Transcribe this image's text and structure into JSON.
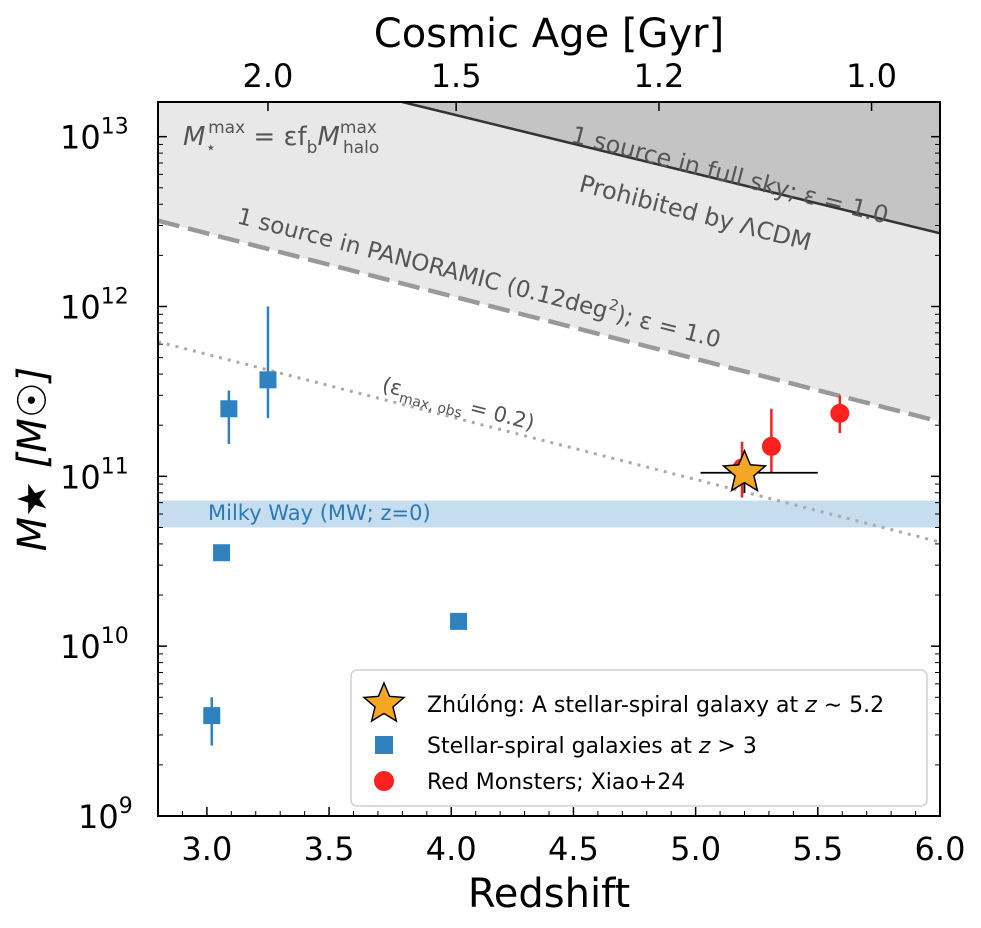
{
  "chart_data": {
    "type": "scatter",
    "xlabel": "Redshift",
    "ylabel": "M★ [M☉]",
    "top_xlabel": "Cosmic Age [Gyr]",
    "xlim": [
      2.8,
      6.0
    ],
    "ylim": [
      1000000000.0,
      16000000000000.0
    ],
    "yscale": "log",
    "x_ticks": [
      "3.0",
      "3.5",
      "4.0",
      "4.5",
      "5.0",
      "5.5",
      "6.0"
    ],
    "x_tick_values": [
      3.0,
      3.5,
      4.0,
      4.5,
      5.0,
      5.5,
      6.0
    ],
    "y_ticks": [
      {
        "value": 1000000000.0,
        "base": "10",
        "exp": "9"
      },
      {
        "value": 10000000000.0,
        "base": "10",
        "exp": "10"
      },
      {
        "value": 100000000000.0,
        "base": "10",
        "exp": "11"
      },
      {
        "value": 1000000000000.0,
        "base": "10",
        "exp": "12"
      },
      {
        "value": 10000000000000.0,
        "base": "10",
        "exp": "13"
      }
    ],
    "top_ticks": [
      {
        "label": "2.0",
        "z": 3.25
      },
      {
        "label": "1.5",
        "z": 4.02
      },
      {
        "label": "1.2",
        "z": 4.85
      },
      {
        "label": "1.0",
        "z": 5.72
      }
    ],
    "grid": false,
    "legend_position": "lower-right",
    "series": [
      {
        "name": "Zhúlóng: A stellar-spiral galaxy at z ∼ 5.2",
        "marker": "star",
        "color": "#f5a623",
        "points": [
          {
            "x": 5.2,
            "y": 105000000000.0,
            "xerr": [
              5.02,
              5.5
            ],
            "yerr": [
              80000000000.0,
              130000000000.0
            ]
          }
        ]
      },
      {
        "name": "Stellar-spiral galaxies at z > 3",
        "marker": "square",
        "color": "#2e82c0",
        "points": [
          {
            "x": 3.02,
            "y": 3900000000.0,
            "yerr": [
              2600000000.0,
              5000000000.0
            ]
          },
          {
            "x": 3.06,
            "y": 35500000000.0
          },
          {
            "x": 3.09,
            "y": 250000000000.0,
            "yerr": [
              155000000000.0,
              320000000000.0
            ]
          },
          {
            "x": 3.25,
            "y": 370000000000.0,
            "yerr": [
              220000000000.0,
              1000000000000.0
            ]
          },
          {
            "x": 4.03,
            "y": 14000000000.0
          }
        ]
      },
      {
        "name": "Red Monsters; Xiao+24",
        "marker": "circle",
        "color": "#ff2020",
        "points": [
          {
            "x": 5.19,
            "y": 112000000000.0,
            "yerr": [
              75000000000.0,
              160000000000.0
            ]
          },
          {
            "x": 5.31,
            "y": 150000000000.0,
            "yerr": [
              105000000000.0,
              250000000000.0
            ]
          },
          {
            "x": 5.59,
            "y": 235000000000.0,
            "yerr": [
              180000000000.0,
              300000000000.0
            ]
          }
        ]
      }
    ],
    "curves": {
      "full_sky": {
        "points": [
          [
            3.8,
            16000000000000.0
          ],
          [
            6.0,
            2700000000000.0
          ]
        ],
        "color": "#333333"
      },
      "panoramic": {
        "points": [
          [
            2.8,
            3200000000000.0
          ],
          [
            6.0,
            210000000000.0
          ]
        ],
        "color": "#999999"
      },
      "eps_obs": {
        "points": [
          [
            2.8,
            620000000000.0
          ],
          [
            6.0,
            41000000000.0
          ]
        ],
        "color": "#aaaaaa"
      }
    },
    "milky_way_band": {
      "ymin": 50000000000.0,
      "ymax": 72000000000.0,
      "color": "#bcd7ec"
    },
    "annotations": {
      "equation": {
        "m": "M",
        "sub1": "⋆",
        "sup1": "max",
        "mid": " = εf",
        "sub2": "b",
        "m2": "M",
        "sup2": "max",
        "sub3": "halo"
      },
      "full_sky_label": "1 source in full sky; ε = 1.0",
      "prohibited_label": "Prohibited by ΛCDM",
      "panoramic_label_a": "1 source in PANORAMIC (0.12deg",
      "panoramic_label_sup": "2",
      "panoramic_label_b": "); ε = 1.0",
      "eps_label_a": "(ε",
      "eps_label_sub": "max, obs",
      "eps_label_b": " = 0.2)",
      "milky_way_label": "Milky Way (MW; z=0)"
    },
    "legend": [
      {
        "marker": "star",
        "color": "#f5a623",
        "text_a": "Zhúlóng: A stellar-spiral galaxy at ",
        "text_it": "z",
        "text_b": " ∼ 5.2"
      },
      {
        "marker": "square",
        "color": "#2e82c0",
        "text_a": "Stellar-spiral galaxies at ",
        "text_it": "z",
        "text_b": " > 3"
      },
      {
        "marker": "circle",
        "color": "#ff2020",
        "text_a": "Red Monsters; Xiao+24",
        "text_it": "",
        "text_b": ""
      }
    ]
  }
}
